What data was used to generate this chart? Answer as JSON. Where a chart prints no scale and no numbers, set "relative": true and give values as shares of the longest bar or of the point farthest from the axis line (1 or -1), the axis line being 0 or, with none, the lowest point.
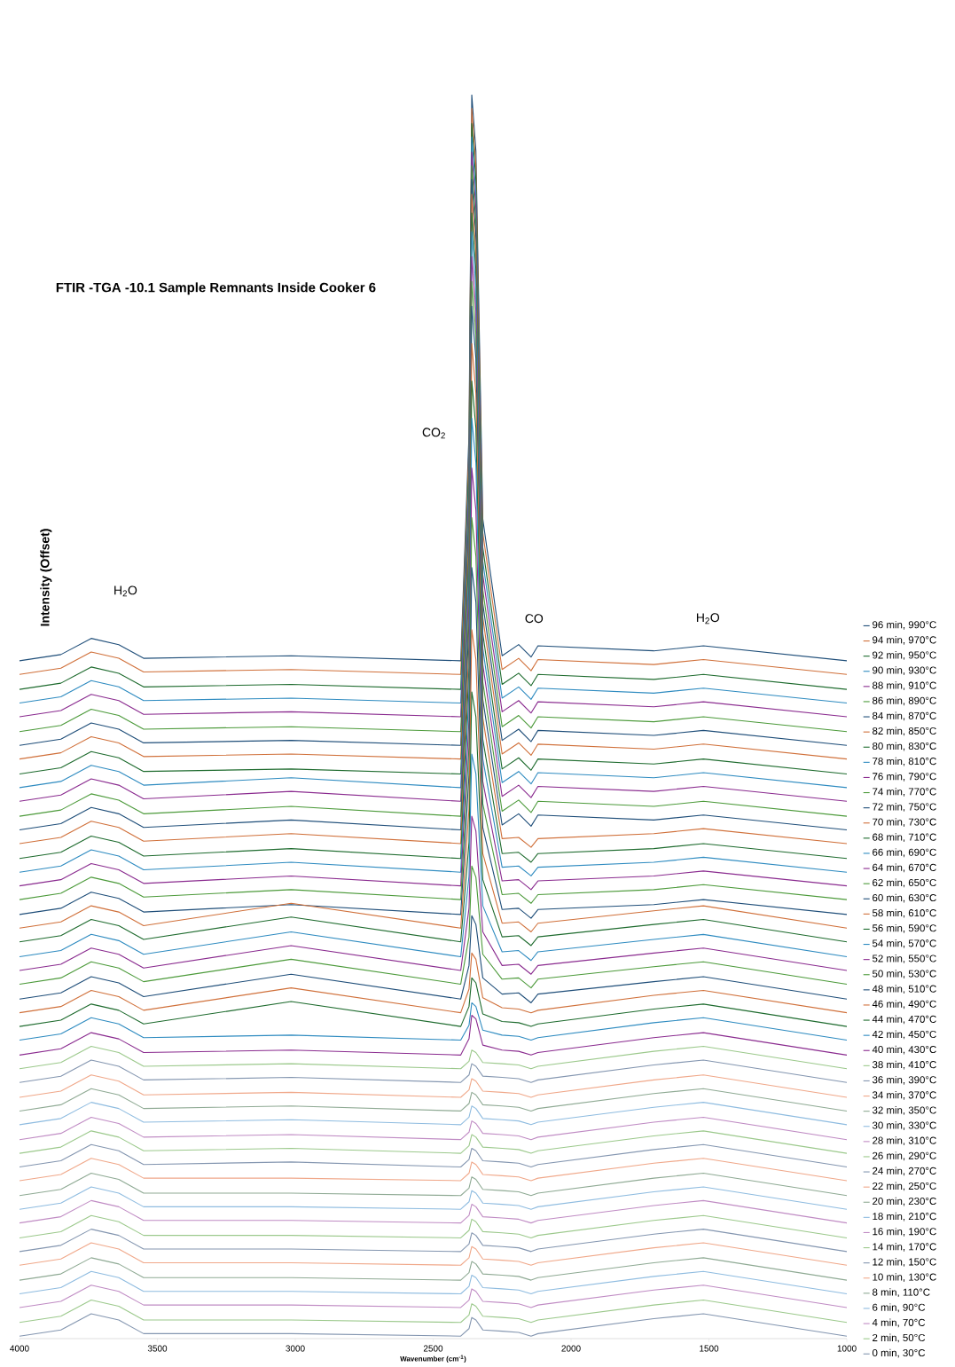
{
  "chart_data": {
    "type": "line",
    "title": "FTIR -TGA -10.1 Sample Remnants Inside Cooker 6",
    "xlabel": "Wavenumber (cm$^{-1}$)",
    "ylabel": "Intensity (Offset)",
    "relative": true,
    "legend": "right",
    "xlim": [
      4000,
      1000
    ],
    "xticks": [
      4000,
      3500,
      3000,
      2500,
      2000,
      1500,
      1000
    ],
    "annotations": [
      "CO$_{2}$",
      "H$_{2}$O",
      "CO",
      "H$_{2}$O"
    ],
    "x": [
      4000,
      3850,
      3740,
      3640,
      3550,
      3015,
      2400,
      2370,
      2360,
      2345,
      2320,
      2250,
      2190,
      2145,
      2120,
      1700,
      1520,
      1000
    ],
    "series": [
      {
        "name": "96 min, 990°C",
        "color": "#1f4e79",
        "values": [
          0.545,
          0.55,
          0.563,
          0.558,
          0.547,
          0.549,
          0.545,
          0.727,
          1,
          0.955,
          0.659,
          0.549,
          0.558,
          0.548,
          0.557,
          0.553,
          0.557,
          0.545
        ]
      },
      {
        "name": "94 min, 970°C",
        "color": "#d0703a",
        "values": [
          0.534,
          0.539,
          0.552,
          0.547,
          0.536,
          0.538,
          0.534,
          0.716,
          0.989,
          0.944,
          0.648,
          0.538,
          0.547,
          0.537,
          0.546,
          0.542,
          0.546,
          0.534
        ]
      },
      {
        "name": "92 min, 950°C",
        "color": "#1e6b2e",
        "values": [
          0.522,
          0.527,
          0.54,
          0.535,
          0.524,
          0.526,
          0.522,
          0.704,
          0.977,
          0.932,
          0.636,
          0.526,
          0.535,
          0.525,
          0.534,
          0.53,
          0.534,
          0.522
        ]
      },
      {
        "name": "90 min, 930°C",
        "color": "#2e8bc0",
        "values": [
          0.511,
          0.516,
          0.529,
          0.524,
          0.513,
          0.515,
          0.511,
          0.693,
          0.966,
          0.921,
          0.625,
          0.515,
          0.524,
          0.514,
          0.523,
          0.519,
          0.523,
          0.511
        ]
      },
      {
        "name": "88 min, 910°C",
        "color": "#8a2b8f",
        "values": [
          0.5,
          0.505,
          0.518,
          0.513,
          0.502,
          0.504,
          0.5,
          0.682,
          0.954,
          0.909,
          0.614,
          0.504,
          0.513,
          0.503,
          0.512,
          0.508,
          0.512,
          0.5
        ]
      },
      {
        "name": "86 min, 890°C",
        "color": "#4c9a3a",
        "values": [
          0.488,
          0.493,
          0.506,
          0.501,
          0.49,
          0.492,
          0.488,
          0.67,
          0.943,
          0.898,
          0.602,
          0.492,
          0.501,
          0.491,
          0.5,
          0.496,
          0.5,
          0.488
        ]
      },
      {
        "name": "84 min, 870°C",
        "color": "#1f4e79",
        "values": [
          0.477,
          0.482,
          0.495,
          0.49,
          0.479,
          0.481,
          0.477,
          0.659,
          0.932,
          0.887,
          0.591,
          0.481,
          0.49,
          0.48,
          0.489,
          0.485,
          0.489,
          0.477
        ]
      },
      {
        "name": "82 min, 850°C",
        "color": "#d0703a",
        "values": [
          0.466,
          0.471,
          0.484,
          0.479,
          0.468,
          0.47,
          0.466,
          0.648,
          0.92,
          0.875,
          0.58,
          0.47,
          0.479,
          0.469,
          0.478,
          0.474,
          0.478,
          0.466
        ]
      },
      {
        "name": "80 min, 830°C",
        "color": "#1e6b2e",
        "values": [
          0.454,
          0.459,
          0.472,
          0.467,
          0.456,
          0.458,
          0.454,
          0.634,
          0.905,
          0.86,
          0.567,
          0.458,
          0.467,
          0.457,
          0.466,
          0.462,
          0.466,
          0.454
        ]
      },
      {
        "name": "78 min, 810°C",
        "color": "#2e8bc0",
        "values": [
          0.443,
          0.448,
          0.461,
          0.456,
          0.445,
          0.451,
          0.443,
          0.622,
          0.89,
          0.845,
          0.555,
          0.447,
          0.456,
          0.446,
          0.455,
          0.451,
          0.455,
          0.443
        ]
      },
      {
        "name": "76 min, 790°C",
        "color": "#8a2b8f",
        "values": [
          0.432,
          0.437,
          0.45,
          0.445,
          0.434,
          0.44,
          0.432,
          0.607,
          0.87,
          0.826,
          0.542,
          0.436,
          0.445,
          0.435,
          0.444,
          0.44,
          0.444,
          0.432
        ]
      },
      {
        "name": "74 min, 770°C",
        "color": "#4c9a3a",
        "values": [
          0.42,
          0.425,
          0.438,
          0.433,
          0.422,
          0.428,
          0.42,
          0.592,
          0.85,
          0.807,
          0.528,
          0.424,
          0.433,
          0.423,
          0.432,
          0.428,
          0.432,
          0.42
        ]
      },
      {
        "name": "72 min, 750°C",
        "color": "#1f4e79",
        "values": [
          0.409,
          0.414,
          0.427,
          0.422,
          0.411,
          0.417,
          0.409,
          0.577,
          0.83,
          0.788,
          0.514,
          0.413,
          0.422,
          0.412,
          0.421,
          0.417,
          0.421,
          0.409
        ]
      },
      {
        "name": "70 min, 730°C",
        "color": "#d0703a",
        "values": [
          0.398,
          0.403,
          0.416,
          0.411,
          0.4,
          0.406,
          0.398,
          0.559,
          0.8,
          0.76,
          0.499,
          0.402,
          0.403,
          0.395,
          0.402,
          0.406,
          0.41,
          0.398
        ]
      },
      {
        "name": "68 min, 710°C",
        "color": "#1e6b2e",
        "values": [
          0.386,
          0.391,
          0.404,
          0.399,
          0.388,
          0.394,
          0.386,
          0.54,
          0.77,
          0.732,
          0.482,
          0.39,
          0.391,
          0.383,
          0.39,
          0.394,
          0.398,
          0.386
        ]
      },
      {
        "name": "66 min, 690°C",
        "color": "#2e8bc0",
        "values": [
          0.375,
          0.38,
          0.393,
          0.388,
          0.377,
          0.383,
          0.375,
          0.521,
          0.74,
          0.704,
          0.466,
          0.379,
          0.38,
          0.372,
          0.379,
          0.383,
          0.387,
          0.375
        ]
      },
      {
        "name": "64 min, 670°C",
        "color": "#8a2b8f",
        "values": [
          0.364,
          0.369,
          0.382,
          0.377,
          0.366,
          0.372,
          0.364,
          0.498,
          0.7,
          0.666,
          0.448,
          0.368,
          0.369,
          0.361,
          0.368,
          0.372,
          0.376,
          0.364
        ]
      },
      {
        "name": "62 min, 650°C",
        "color": "#4c9a3a",
        "values": [
          0.353,
          0.358,
          0.371,
          0.366,
          0.355,
          0.361,
          0.353,
          0.476,
          0.66,
          0.629,
          0.43,
          0.357,
          0.358,
          0.35,
          0.357,
          0.361,
          0.365,
          0.353
        ]
      },
      {
        "name": "60 min, 630°C",
        "color": "#1f4e79",
        "values": [
          0.341,
          0.346,
          0.359,
          0.354,
          0.343,
          0.349,
          0.341,
          0.453,
          0.62,
          0.592,
          0.411,
          0.345,
          0.346,
          0.338,
          0.345,
          0.349,
          0.353,
          0.341
        ]
      },
      {
        "name": "58 min, 610°C",
        "color": "#d0703a",
        "values": [
          0.33,
          0.335,
          0.348,
          0.343,
          0.332,
          0.35,
          0.33,
          0.426,
          0.57,
          0.546,
          0.39,
          0.334,
          0.335,
          0.327,
          0.334,
          0.344,
          0.348,
          0.33
        ]
      },
      {
        "name": "56 min, 590°C",
        "color": "#1e6b2e",
        "values": [
          0.319,
          0.324,
          0.337,
          0.332,
          0.321,
          0.339,
          0.319,
          0.399,
          0.52,
          0.5,
          0.369,
          0.323,
          0.324,
          0.316,
          0.323,
          0.333,
          0.337,
          0.319
        ]
      },
      {
        "name": "54 min, 570°C",
        "color": "#2e8bc0",
        "values": [
          0.307,
          0.312,
          0.325,
          0.32,
          0.309,
          0.327,
          0.307,
          0.372,
          0.47,
          0.454,
          0.348,
          0.311,
          0.312,
          0.304,
          0.311,
          0.321,
          0.325,
          0.307
        ]
      },
      {
        "name": "52 min, 550°C",
        "color": "#8a2b8f",
        "values": [
          0.296,
          0.301,
          0.314,
          0.309,
          0.298,
          0.316,
          0.296,
          0.346,
          0.42,
          0.408,
          0.327,
          0.3,
          0.301,
          0.293,
          0.3,
          0.31,
          0.314,
          0.296
        ]
      },
      {
        "name": "50 min, 530°C",
        "color": "#4c9a3a",
        "values": [
          0.285,
          0.29,
          0.303,
          0.298,
          0.287,
          0.305,
          0.285,
          0.323,
          0.38,
          0.371,
          0.309,
          0.289,
          0.29,
          0.282,
          0.289,
          0.299,
          0.303,
          0.285
        ]
      },
      {
        "name": "48 min, 510°C",
        "color": "#1f4e79",
        "values": [
          0.273,
          0.278,
          0.291,
          0.286,
          0.275,
          0.293,
          0.273,
          0.3,
          0.34,
          0.333,
          0.29,
          0.277,
          0.278,
          0.27,
          0.277,
          0.287,
          0.291,
          0.273
        ]
      },
      {
        "name": "46 min, 490°C",
        "color": "#d0703a",
        "values": [
          0.262,
          0.267,
          0.28,
          0.275,
          0.264,
          0.282,
          0.262,
          0.281,
          0.31,
          0.305,
          0.274,
          0.266,
          0.265,
          0.262,
          0.264,
          0.276,
          0.28,
          0.262
        ]
      },
      {
        "name": "44 min, 470°C",
        "color": "#1e6b2e",
        "values": [
          0.251,
          0.256,
          0.269,
          0.264,
          0.253,
          0.271,
          0.251,
          0.267,
          0.29,
          0.286,
          0.261,
          0.255,
          0.254,
          0.251,
          0.253,
          0.265,
          0.269,
          0.251
        ]
      },
      {
        "name": "42 min, 450°C",
        "color": "#2e8bc0",
        "values": [
          0.24,
          0.245,
          0.258,
          0.253,
          0.242,
          0.244,
          0.24,
          0.252,
          0.27,
          0.267,
          0.248,
          0.244,
          0.243,
          0.24,
          0.242,
          0.254,
          0.258,
          0.24
        ]
      },
      {
        "name": "40 min, 430°C",
        "color": "#8a2b8f",
        "values": [
          0.228,
          0.233,
          0.246,
          0.241,
          0.23,
          0.232,
          0.228,
          0.241,
          0.26,
          0.257,
          0.236,
          0.232,
          0.231,
          0.228,
          0.23,
          0.242,
          0.246,
          0.228
        ]
      },
      {
        "name": "38 min, 410°C",
        "color": "#9cc98c",
        "values": [
          0.217,
          0.222,
          0.235,
          0.23,
          0.219,
          0.221,
          0.217,
          0.223,
          0.232,
          0.23,
          0.222,
          0.221,
          0.22,
          0.217,
          0.219,
          0.231,
          0.235,
          0.217
        ]
      },
      {
        "name": "36 min, 390°C",
        "color": "#8496b0",
        "values": [
          0.206,
          0.211,
          0.224,
          0.219,
          0.208,
          0.21,
          0.206,
          0.212,
          0.221,
          0.219,
          0.211,
          0.21,
          0.209,
          0.206,
          0.208,
          0.22,
          0.224,
          0.206
        ]
      },
      {
        "name": "34 min, 370°C",
        "color": "#f0a88a",
        "values": [
          0.194,
          0.199,
          0.212,
          0.207,
          0.196,
          0.198,
          0.194,
          0.2,
          0.209,
          0.207,
          0.199,
          0.198,
          0.197,
          0.194,
          0.196,
          0.208,
          0.212,
          0.194
        ]
      },
      {
        "name": "32 min, 350°C",
        "color": "#8faa94",
        "values": [
          0.183,
          0.188,
          0.201,
          0.196,
          0.185,
          0.187,
          0.183,
          0.189,
          0.198,
          0.196,
          0.188,
          0.187,
          0.186,
          0.183,
          0.185,
          0.197,
          0.201,
          0.183
        ]
      },
      {
        "name": "30 min, 330°C",
        "color": "#8fbce0",
        "values": [
          0.172,
          0.177,
          0.19,
          0.185,
          0.174,
          0.176,
          0.172,
          0.178,
          0.187,
          0.185,
          0.177,
          0.176,
          0.175,
          0.172,
          0.174,
          0.186,
          0.19,
          0.172
        ]
      },
      {
        "name": "28 min, 310°C",
        "color": "#c08cc4",
        "values": [
          0.16,
          0.165,
          0.178,
          0.173,
          0.162,
          0.164,
          0.16,
          0.166,
          0.175,
          0.173,
          0.165,
          0.164,
          0.163,
          0.16,
          0.162,
          0.174,
          0.178,
          0.16
        ]
      },
      {
        "name": "26 min, 290°C",
        "color": "#9cc98c",
        "values": [
          0.149,
          0.154,
          0.167,
          0.162,
          0.151,
          0.153,
          0.149,
          0.155,
          0.164,
          0.162,
          0.154,
          0.153,
          0.152,
          0.149,
          0.151,
          0.163,
          0.167,
          0.149
        ]
      },
      {
        "name": "24 min, 270°C",
        "color": "#8496b0",
        "values": [
          0.138,
          0.143,
          0.156,
          0.151,
          0.14,
          0.142,
          0.138,
          0.144,
          0.153,
          0.151,
          0.143,
          0.142,
          0.141,
          0.138,
          0.14,
          0.152,
          0.156,
          0.138
        ]
      },
      {
        "name": "22 min, 250°C",
        "color": "#f0a88a",
        "values": [
          0.127,
          0.132,
          0.145,
          0.14,
          0.129,
          0.129,
          0.127,
          0.133,
          0.142,
          0.14,
          0.132,
          0.131,
          0.13,
          0.127,
          0.129,
          0.141,
          0.145,
          0.127
        ]
      },
      {
        "name": "20 min, 230°C",
        "color": "#8faa94",
        "values": [
          0.115,
          0.12,
          0.133,
          0.128,
          0.117,
          0.117,
          0.115,
          0.121,
          0.13,
          0.128,
          0.12,
          0.119,
          0.118,
          0.115,
          0.117,
          0.129,
          0.133,
          0.115
        ]
      },
      {
        "name": "18 min, 210°C",
        "color": "#8fbce0",
        "values": [
          0.104,
          0.109,
          0.122,
          0.117,
          0.106,
          0.106,
          0.104,
          0.11,
          0.119,
          0.117,
          0.109,
          0.108,
          0.107,
          0.104,
          0.106,
          0.118,
          0.122,
          0.104
        ]
      },
      {
        "name": "16 min, 190°C",
        "color": "#c08cc4",
        "values": [
          0.093,
          0.098,
          0.111,
          0.106,
          0.095,
          0.095,
          0.093,
          0.099,
          0.108,
          0.106,
          0.098,
          0.097,
          0.096,
          0.093,
          0.095,
          0.107,
          0.111,
          0.093
        ]
      },
      {
        "name": "14 min, 170°C",
        "color": "#9cc98c",
        "values": [
          0.081,
          0.086,
          0.099,
          0.094,
          0.083,
          0.083,
          0.081,
          0.087,
          0.096,
          0.094,
          0.086,
          0.085,
          0.084,
          0.081,
          0.083,
          0.095,
          0.099,
          0.081
        ]
      },
      {
        "name": "12 min, 150°C",
        "color": "#8496b0",
        "values": [
          0.07,
          0.075,
          0.088,
          0.083,
          0.072,
          0.072,
          0.07,
          0.076,
          0.085,
          0.083,
          0.075,
          0.074,
          0.073,
          0.07,
          0.072,
          0.084,
          0.088,
          0.07
        ]
      },
      {
        "name": "10 min, 130°C",
        "color": "#f0a88a",
        "values": [
          0.059,
          0.064,
          0.077,
          0.072,
          0.061,
          0.061,
          0.059,
          0.065,
          0.074,
          0.072,
          0.064,
          0.063,
          0.062,
          0.059,
          0.061,
          0.073,
          0.077,
          0.059
        ]
      },
      {
        "name": "8 min, 110°C",
        "color": "#8faa94",
        "values": [
          0.047,
          0.052,
          0.065,
          0.06,
          0.049,
          0.049,
          0.047,
          0.053,
          0.062,
          0.06,
          0.052,
          0.051,
          0.05,
          0.047,
          0.049,
          0.061,
          0.065,
          0.047
        ]
      },
      {
        "name": "6 min, 90°C",
        "color": "#8fbce0",
        "values": [
          0.036,
          0.041,
          0.054,
          0.049,
          0.038,
          0.038,
          0.036,
          0.042,
          0.051,
          0.049,
          0.041,
          0.04,
          0.039,
          0.036,
          0.038,
          0.05,
          0.054,
          0.036
        ]
      },
      {
        "name": "4 min, 70°C",
        "color": "#c08cc4",
        "values": [
          0.025,
          0.03,
          0.043,
          0.038,
          0.027,
          0.027,
          0.025,
          0.031,
          0.04,
          0.038,
          0.03,
          0.029,
          0.028,
          0.025,
          0.027,
          0.039,
          0.043,
          0.025
        ]
      },
      {
        "name": "2 min, 50°C",
        "color": "#9cc98c",
        "values": [
          0.013,
          0.018,
          0.031,
          0.026,
          0.015,
          0.015,
          0.013,
          0.019,
          0.028,
          0.026,
          0.018,
          0.017,
          0.016,
          0.013,
          0.015,
          0.027,
          0.031,
          0.013
        ]
      },
      {
        "name": "0 min, 30°C",
        "color": "#8496b0",
        "values": [
          0.002,
          0.007,
          0.02,
          0.015,
          0.004,
          0.004,
          0.002,
          0.008,
          0.017,
          0.015,
          0.007,
          0.006,
          0.005,
          0.002,
          0.004,
          0.016,
          0.02,
          0.002
        ]
      }
    ]
  }
}
